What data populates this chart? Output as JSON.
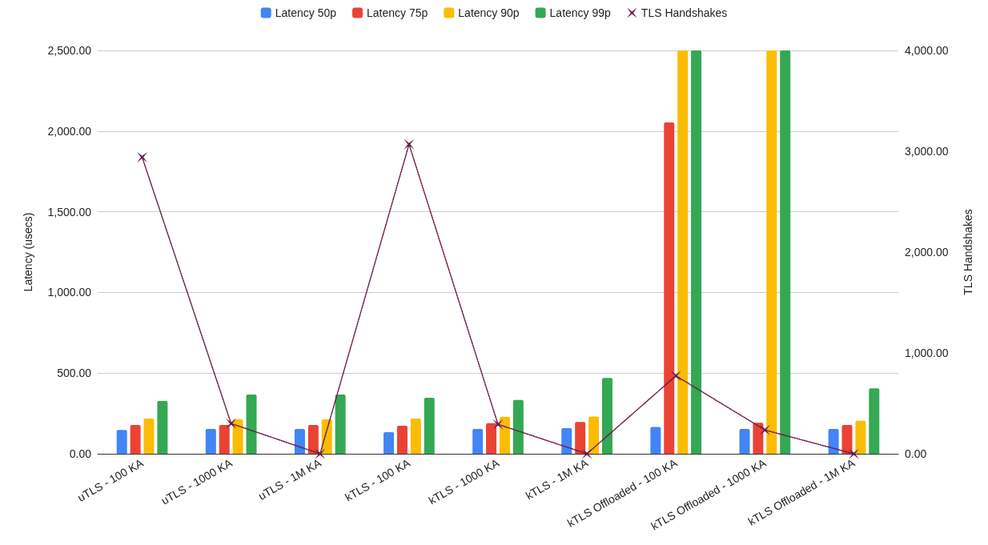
{
  "chart_data": {
    "type": "bar",
    "categories": [
      "uTLS - 100 KA",
      "uTLS - 1000 KA",
      "uTLS - 1M KA",
      "kTLS - 100 KA",
      "kTLS - 1000 KA",
      "kTLS - 1M KA",
      "kTLS Offloaded - 100 KA",
      "kTLS Offloaded - 1000 KA",
      "kTLS Offloaded - 1M KA"
    ],
    "series": [
      {
        "name": "Latency 50p",
        "color": "#4285f4",
        "values": [
          147,
          154,
          154,
          134,
          154,
          159,
          166,
          154,
          154
        ]
      },
      {
        "name": "Latency 75p",
        "color": "#ea4335",
        "values": [
          179,
          179,
          179,
          174,
          190,
          197,
          2053,
          192,
          179
        ]
      },
      {
        "name": "Latency 90p",
        "color": "#fbbc04",
        "values": [
          218,
          213,
          213,
          218,
          229,
          231,
          2500,
          2500,
          204
        ]
      },
      {
        "name": "Latency 99p",
        "color": "#34a853",
        "values": [
          327,
          367,
          367,
          347,
          334,
          470,
          2500,
          2500,
          405
        ]
      },
      {
        "name": "TLS Handshakes",
        "type": "line",
        "axis": "y2",
        "color": "#6b1a4a",
        "marker": "cross",
        "line_style": "dotted",
        "values": [
          2941,
          300,
          0,
          3069,
          292,
          0,
          773,
          236,
          0
        ]
      }
    ],
    "ylabel": "Latency (usecs)",
    "y2label": "TLS Handshakes",
    "ylim": [
      0,
      2500
    ],
    "yticks": [
      {
        "value": 0,
        "label": "0.00"
      },
      {
        "value": 500,
        "label": "500.00"
      },
      {
        "value": 1000,
        "label": "1,000.00"
      },
      {
        "value": 1500,
        "label": "1,500.00"
      },
      {
        "value": 2000,
        "label": "2,000.00"
      },
      {
        "value": 2500,
        "label": "2,500.00"
      }
    ],
    "y2lim": [
      0,
      4000
    ],
    "y2ticks": [
      {
        "value": 0,
        "label": "0.00"
      },
      {
        "value": 1000,
        "label": "1,000.00"
      },
      {
        "value": 2000,
        "label": "2,000.00"
      },
      {
        "value": 3000,
        "label": "3,000.00"
      },
      {
        "value": 4000,
        "label": "4,000.00"
      }
    ],
    "grid": "y",
    "legend": "top"
  }
}
